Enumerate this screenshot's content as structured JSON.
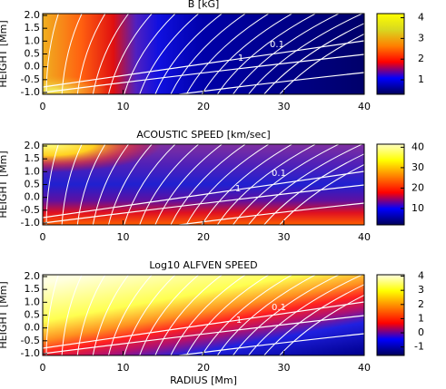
{
  "chart_data": [
    {
      "type": "heatmap",
      "title": "B [kG]",
      "ylabel": "HEIGHT [Mm]",
      "xlim": [
        0,
        40
      ],
      "xticks": [
        0,
        10,
        20,
        30,
        40
      ],
      "ylim": [
        -1,
        2
      ],
      "yticks": [
        {
          "value": -1,
          "label": "-1.0"
        },
        -0.5,
        {
          "value": 0,
          "label": "0.0"
        },
        0.5,
        {
          "value": 1,
          "label": "1.0"
        },
        1.5,
        {
          "value": 2,
          "label": "2.0"
        }
      ],
      "clim": [
        0.3,
        4.2
      ],
      "cticks": [
        1,
        2,
        3,
        4
      ],
      "colormap": [
        "#00005a",
        "#0000ff",
        "#ff0000",
        "#ff8000",
        "#d8d820",
        "#ffff00"
      ],
      "contour_labels": [
        "0.1",
        "1"
      ]
    },
    {
      "type": "heatmap",
      "title": "ACOUSTIC SPEED [km/sec]",
      "ylabel": "HEIGHT [Mm]",
      "xlim": [
        0,
        40
      ],
      "xticks": [
        0,
        10,
        20,
        30,
        40
      ],
      "ylim": [
        -1,
        2
      ],
      "yticks": [
        {
          "value": -1,
          "label": "-1.0"
        },
        -0.5,
        {
          "value": 0,
          "label": "0.0"
        },
        0.5,
        {
          "value": 1,
          "label": "1.0"
        },
        1.5,
        {
          "value": 2,
          "label": "2.0"
        }
      ],
      "clim": [
        2,
        41.5
      ],
      "cticks": [
        10,
        20,
        30,
        40
      ],
      "colormap": [
        "#00005a",
        "#0000ff",
        "#ff0000",
        "#ff8000",
        "#ffff00",
        "#ffffc0"
      ],
      "contour_labels": [
        "0.1",
        "1"
      ]
    },
    {
      "type": "heatmap",
      "title": "Log10 ALFVEN SPEED",
      "ylabel": "HEIGHT [Mm]",
      "xlabel": "RADIUS [Mm]",
      "xlim": [
        0,
        40
      ],
      "xticks": [
        0,
        10,
        20,
        30,
        40
      ],
      "ylim": [
        -1,
        2
      ],
      "yticks": [
        {
          "value": -1,
          "label": "-1.0"
        },
        -0.5,
        {
          "value": 0,
          "label": "0.0"
        },
        0.5,
        {
          "value": 1,
          "label": "1.0"
        },
        1.5,
        {
          "value": 2,
          "label": "2.0"
        }
      ],
      "clim": [
        -1.6,
        4.1
      ],
      "cticks": [
        -1,
        0,
        1,
        2,
        3,
        4
      ],
      "colormap": [
        "#00005a",
        "#0000ff",
        "#ff0000",
        "#ff8000",
        "#ffff00",
        "#ffffe0"
      ],
      "contour_labels": [
        "0.1",
        "1"
      ]
    }
  ]
}
